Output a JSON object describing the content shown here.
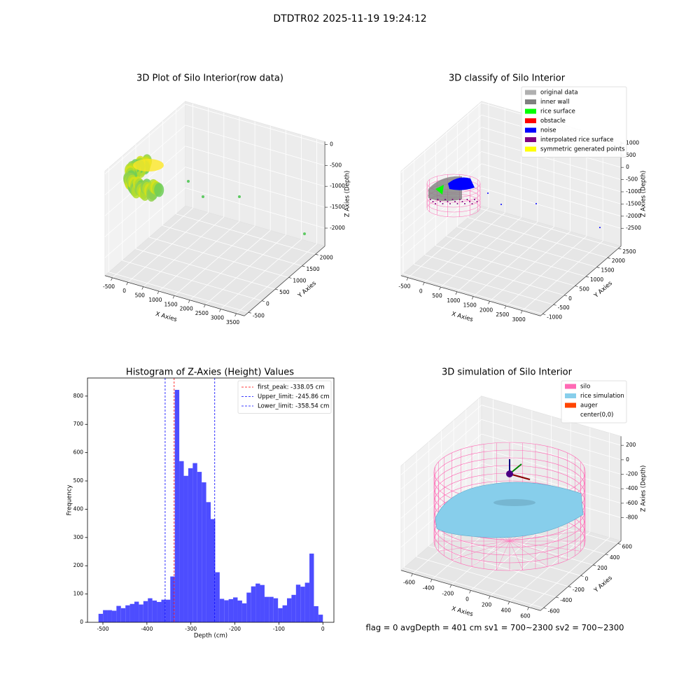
{
  "title": "DTDTR02 2025-11-19 19:24:12",
  "footer": "flag = 0     avgDepth = 401 cm  sv1 = 700~2300  sv2 = 700~2300",
  "chart_data": [
    {
      "type": "scatter3d",
      "title": "3D Plot of Silo Interior(row data)",
      "xlabel": "X Axies",
      "ylabel": "Y Axies",
      "zlabel": "Z Axies (Depth)",
      "xlim": [
        -740,
        3760
      ],
      "ylim": [
        -650,
        2350
      ],
      "zlim": [
        -2430,
        70
      ],
      "xticks": [
        -500,
        0,
        500,
        1000,
        1500,
        2000,
        2500,
        3000,
        3500
      ],
      "yticks": [
        -500,
        0,
        500,
        1000,
        1500,
        2000
      ],
      "zticks": [
        -2000,
        -1500,
        -1000,
        -500,
        0
      ]
    },
    {
      "type": "scatter3d",
      "title": "3D classify of Silo Interior",
      "xlabel": "X Axies",
      "ylabel": "Y Axies",
      "zlabel": "Z Axies (Depth)",
      "xlim": [
        -715,
        3555
      ],
      "ylim": [
        -1100,
        2620
      ],
      "zlim": [
        -3230,
        1060
      ],
      "xticks": [
        -500,
        0,
        500,
        1000,
        1500,
        2000,
        2500,
        3000
      ],
      "yticks": [
        -1000,
        -500,
        0,
        500,
        1000,
        1500,
        2000,
        2500
      ],
      "zticks": [
        -2500,
        -2000,
        -1500,
        -1000,
        -500,
        0,
        500,
        1000
      ],
      "legend": [
        {
          "name": "original data",
          "color": "#b0b0b0"
        },
        {
          "name": "inner wall",
          "color": "#808080"
        },
        {
          "name": "rice surface",
          "color": "#00ff00"
        },
        {
          "name": "obstacle",
          "color": "#ff0000"
        },
        {
          "name": "noise",
          "color": "#0000ff"
        },
        {
          "name": "interpolated rice surface",
          "color": "#800080"
        },
        {
          "name": "symmetric generated points",
          "color": "#ffff00"
        }
      ]
    },
    {
      "type": "histogram",
      "title": "Histogram of Z-Axies (Height) Values",
      "xlabel": "Depth (cm)",
      "ylabel": "Frequency",
      "color": "#4d4dff",
      "bins": [
        -510.0,
        -499.8,
        -489.6,
        -479.4,
        -469.2,
        -459.0,
        -448.8,
        -438.6,
        -428.4,
        -418.2,
        -408.0,
        -397.8,
        -387.6,
        -377.4,
        -367.2,
        -357.0,
        -346.8,
        -336.6,
        -326.4,
        -316.2,
        -306.0,
        -295.8,
        -285.6,
        -275.4,
        -265.2,
        -255.0,
        -244.8,
        -234.6,
        -224.4,
        -214.2,
        -204.0,
        -193.8,
        -183.6,
        -173.4,
        -163.2,
        -153.0,
        -142.8,
        -132.6,
        -122.4,
        -112.2,
        -102.0,
        -91.8,
        -81.6,
        -71.4,
        -61.2,
        -51.0,
        -40.8,
        -30.6,
        -20.4,
        -10.2,
        0.0
      ],
      "counts": [
        30,
        43,
        43,
        41,
        58,
        50,
        60,
        65,
        73,
        63,
        75,
        85,
        77,
        72,
        80,
        80,
        162,
        822,
        570,
        518,
        545,
        563,
        532,
        495,
        425,
        365,
        177,
        83,
        78,
        82,
        88,
        77,
        67,
        105,
        127,
        137,
        132,
        90,
        90,
        85,
        50,
        60,
        85,
        97,
        133,
        126,
        140,
        243,
        57,
        27
      ],
      "xlim": [
        -535,
        25
      ],
      "ylim": [
        0,
        864
      ],
      "xticks": [
        -500,
        -400,
        -300,
        -200,
        -100,
        0
      ],
      "yticks": [
        0,
        100,
        200,
        300,
        400,
        500,
        600,
        700,
        800
      ],
      "lines": [
        {
          "name": "first_peak: -338.05 cm",
          "value": -338.05,
          "color": "#ff0000"
        },
        {
          "name": "Upper_limit: -245.86 cm",
          "value": -245.86,
          "color": "#0000ff"
        },
        {
          "name": "Lower_limit: -358.54 cm",
          "value": -358.54,
          "color": "#0000ff"
        }
      ],
      "legend_position": "upper right"
    },
    {
      "type": "surface3d",
      "title": "3D simulation of Silo Interior",
      "xlabel": "X Axies",
      "ylabel": "Y Axies",
      "zlabel": "Z Axies (Depth)",
      "xlim": [
        -720,
        720
      ],
      "ylim": [
        -650,
        650
      ],
      "zlim": [
        -1120,
        325
      ],
      "xticks": [
        -600,
        -400,
        -200,
        0,
        200,
        400,
        600
      ],
      "yticks": [
        -600,
        -400,
        -200,
        0,
        200,
        400,
        600
      ],
      "zticks": [
        -800,
        -600,
        -400,
        -200,
        0,
        200
      ],
      "legend": [
        {
          "name": "silo",
          "color": "#ff69b4"
        },
        {
          "name": "rice simulation",
          "color": "#87ceeb"
        },
        {
          "name": "auger",
          "color": "#ff4500"
        },
        {
          "name": "center(0,0)",
          "color": "#ffffff"
        }
      ]
    }
  ]
}
